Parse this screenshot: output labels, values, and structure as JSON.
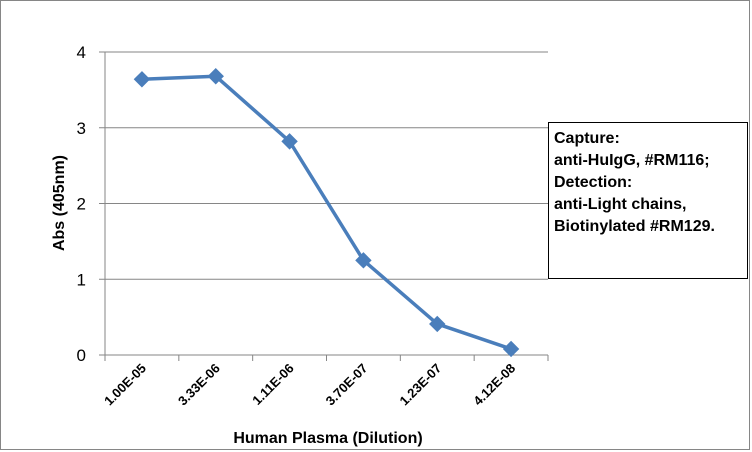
{
  "chart_data": {
    "type": "line",
    "title": "",
    "xlabel": "Human Plasma (Dilution)",
    "ylabel": "Abs (405nm)",
    "categories": [
      "1.00E-05",
      "3.33E-06",
      "1.11E-06",
      "3.70E-07",
      "1.23E-07",
      "4.12E-08"
    ],
    "series": [
      {
        "values": [
          3.64,
          3.68,
          2.82,
          1.25,
          0.41,
          0.08
        ],
        "color": "#4a7ebb",
        "marker": "diamond"
      }
    ],
    "ylim": [
      0,
      4
    ],
    "yticks": [
      "0",
      "1",
      "2",
      "3",
      "4"
    ],
    "grid": "horizontal",
    "annotation": [
      "Capture:",
      "anti-HuIgG, #RM116;",
      "Detection:",
      "anti-Light chains,",
      "Biotinylated #RM129."
    ]
  }
}
